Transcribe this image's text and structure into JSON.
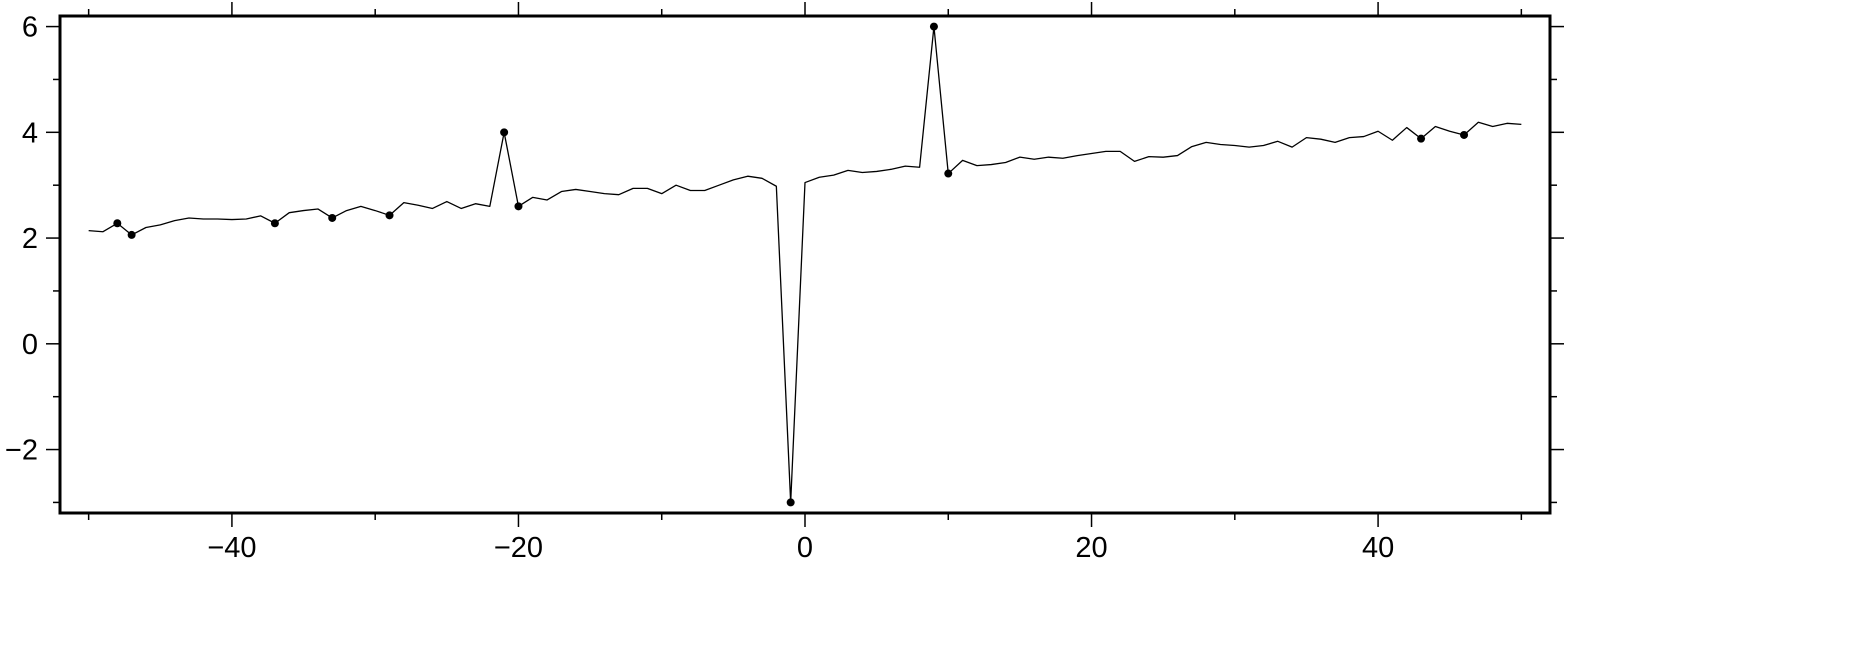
{
  "chart_data": {
    "type": "line",
    "title": "",
    "xlabel": "",
    "ylabel": "",
    "xlim": [
      -52,
      52
    ],
    "ylim": [
      -3.2,
      6.2
    ],
    "grid": false,
    "x_ticks": [
      -40,
      -20,
      0,
      20,
      40
    ],
    "x_tick_labels": [
      "−40",
      "−20",
      "0",
      "20",
      "40"
    ],
    "x_minor_step": 10,
    "y_ticks": [
      -2,
      0,
      2,
      4,
      6
    ],
    "y_tick_labels": [
      "−2",
      "0",
      "2",
      "4",
      "6"
    ],
    "y_minor_step": 1,
    "line_color": "#000000",
    "marker_color": "#000000",
    "x": [
      -50,
      -49,
      -48,
      -47,
      -46,
      -45,
      -44,
      -43,
      -42,
      -41,
      -40,
      -39,
      -38,
      -37,
      -36,
      -35,
      -34,
      -33,
      -32,
      -31,
      -30,
      -29,
      -28,
      -27,
      -26,
      -25,
      -24,
      -23,
      -22,
      -21,
      -20,
      -19,
      -18,
      -17,
      -16,
      -15,
      -14,
      -13,
      -12,
      -11,
      -10,
      -9,
      -8,
      -7,
      -6,
      -5,
      -4,
      -3,
      -2,
      -1,
      0,
      1,
      2,
      3,
      4,
      5,
      6,
      7,
      8,
      9,
      10,
      11,
      12,
      13,
      14,
      15,
      16,
      17,
      18,
      19,
      20,
      21,
      22,
      23,
      24,
      25,
      26,
      27,
      28,
      29,
      30,
      31,
      32,
      33,
      34,
      35,
      36,
      37,
      38,
      39,
      40,
      41,
      42,
      43,
      44,
      45,
      46,
      47,
      48,
      49,
      50
    ],
    "y": [
      2.14,
      2.12,
      2.28,
      2.06,
      2.2,
      2.25,
      2.33,
      2.38,
      2.36,
      2.36,
      2.35,
      2.36,
      2.42,
      2.28,
      2.48,
      2.52,
      2.55,
      2.38,
      2.52,
      2.6,
      2.52,
      2.43,
      2.67,
      2.62,
      2.56,
      2.69,
      2.56,
      2.65,
      2.6,
      4.0,
      2.6,
      2.77,
      2.72,
      2.88,
      2.92,
      2.88,
      2.84,
      2.82,
      2.94,
      2.94,
      2.84,
      3.0,
      2.9,
      2.9,
      3.0,
      3.1,
      3.17,
      3.13,
      2.98,
      -3.0,
      3.05,
      3.15,
      3.19,
      3.28,
      3.24,
      3.26,
      3.3,
      3.36,
      3.34,
      6.0,
      3.22,
      3.47,
      3.37,
      3.39,
      3.43,
      3.53,
      3.49,
      3.53,
      3.51,
      3.56,
      3.6,
      3.64,
      3.64,
      3.45,
      3.54,
      3.53,
      3.56,
      3.73,
      3.81,
      3.77,
      3.75,
      3.72,
      3.75,
      3.83,
      3.72,
      3.9,
      3.87,
      3.81,
      3.9,
      3.92,
      4.02,
      3.85,
      4.09,
      3.88,
      4.11,
      4.02,
      3.95,
      4.19,
      4.11,
      4.17,
      4.15
    ],
    "highlighted_points": [
      {
        "x": -48,
        "y": 2.28
      },
      {
        "x": -47,
        "y": 2.06
      },
      {
        "x": -37,
        "y": 2.28
      },
      {
        "x": -33,
        "y": 2.38
      },
      {
        "x": -29,
        "y": 2.43
      },
      {
        "x": -21,
        "y": 4.0
      },
      {
        "x": -20,
        "y": 2.6
      },
      {
        "x": -1,
        "y": -3.0
      },
      {
        "x": 9,
        "y": 6.0
      },
      {
        "x": 10,
        "y": 3.22
      },
      {
        "x": 43,
        "y": 3.88
      },
      {
        "x": 46,
        "y": 3.95
      }
    ]
  }
}
